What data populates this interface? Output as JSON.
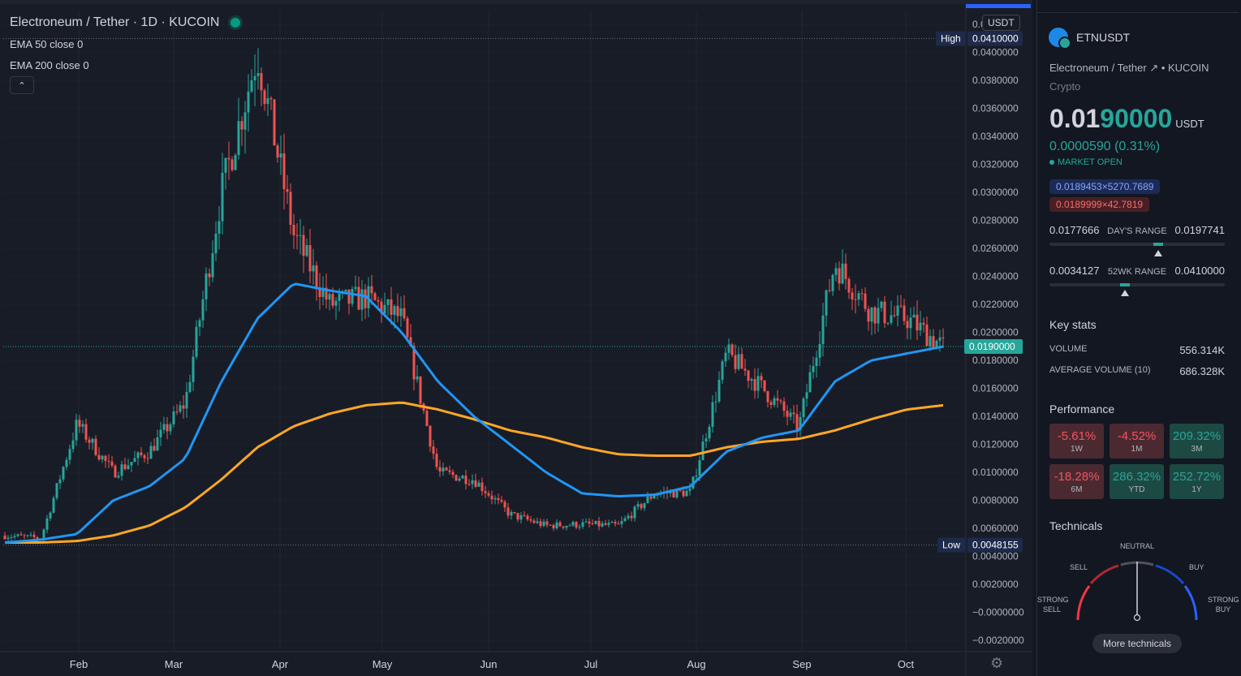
{
  "legend": {
    "symbol_title": "Electroneum / Tether · 1D · KUCOIN",
    "ema50": "EMA 50 close 0",
    "ema200": "EMA 200 close 0",
    "collapse_icon": "chevron-up-icon"
  },
  "currency_badge": "USDT",
  "high_label": "High",
  "high_value": "0.0410000",
  "low_label": "Low",
  "low_value": "0.0048155",
  "last_price_label": "0.0190000",
  "colors": {
    "up": "#26a69a",
    "down": "#ef5350",
    "ema50": "#2196f3",
    "ema200": "#ffa726",
    "background": "#181c27",
    "accent": "#2962ff"
  },
  "chart_data": {
    "type": "candlestick",
    "title": "Electroneum / Tether · 1D · KUCOIN",
    "ylim": [
      -0.0028,
      0.043
    ],
    "y_ticks": [
      "0.0420000",
      "0.0400000",
      "0.0380000",
      "0.0360000",
      "0.0340000",
      "0.0320000",
      "0.0300000",
      "0.0280000",
      "0.0260000",
      "0.0240000",
      "0.0220000",
      "0.0200000",
      "0.0180000",
      "0.0160000",
      "0.0140000",
      "0.0120000",
      "0.0100000",
      "0.0080000",
      "0.0060000",
      "0.0040000",
      "0.0020000",
      "−0.0000000",
      "−0.0020000"
    ],
    "x_ticks": [
      "Feb",
      "Mar",
      "Apr",
      "May",
      "Jun",
      "Jul",
      "Aug",
      "Sep",
      "Oct"
    ],
    "series": [
      {
        "name": "Close",
        "x": [
          "Jan",
          "early Feb",
          "mid Feb",
          "late Feb",
          "Mar",
          "mid Mar",
          "late Mar",
          "early Apr",
          "mid Apr",
          "late Apr",
          "May",
          "mid May",
          "late May",
          "Jun",
          "mid Jun",
          "late Jun",
          "Jul",
          "mid Jul",
          "late Jul",
          "Aug",
          "mid Aug",
          "late Aug",
          "Sep",
          "mid Sep",
          "late Sep",
          "Oct",
          "mid Oct"
        ],
        "values": [
          0.0055,
          0.0053,
          0.0135,
          0.01,
          0.0115,
          0.015,
          0.03,
          0.04,
          0.027,
          0.022,
          0.0225,
          0.021,
          0.01,
          0.0095,
          0.007,
          0.0062,
          0.0063,
          0.0062,
          0.0085,
          0.0086,
          0.0185,
          0.016,
          0.0132,
          0.025,
          0.0215,
          0.021,
          0.019
        ]
      },
      {
        "name": "EMA 50 close 0",
        "x": [
          "Jan",
          "early Feb",
          "mid Feb",
          "late Feb",
          "Mar",
          "mid Mar",
          "late Mar",
          "early Apr",
          "mid Apr",
          "late Apr",
          "May",
          "mid May",
          "late May",
          "Jun",
          "mid Jun",
          "late Jun",
          "Jul",
          "mid Jul",
          "late Jul",
          "Aug",
          "mid Aug",
          "late Aug",
          "Sep",
          "mid Sep",
          "late Sep",
          "Oct",
          "mid Oct"
        ],
        "values": [
          0.005,
          0.0052,
          0.0056,
          0.008,
          0.009,
          0.011,
          0.0165,
          0.021,
          0.0235,
          0.023,
          0.0226,
          0.02,
          0.0165,
          0.014,
          0.012,
          0.01,
          0.0085,
          0.0083,
          0.0084,
          0.009,
          0.0115,
          0.0125,
          0.013,
          0.0165,
          0.018,
          0.0185,
          0.019
        ]
      },
      {
        "name": "EMA 200 close 0",
        "x": [
          "Jan",
          "early Feb",
          "mid Feb",
          "late Feb",
          "Mar",
          "mid Mar",
          "late Mar",
          "early Apr",
          "mid Apr",
          "late Apr",
          "May",
          "mid May",
          "late May",
          "Jun",
          "mid Jun",
          "late Jun",
          "Jul",
          "mid Jul",
          "late Jul",
          "Aug",
          "mid Aug",
          "late Aug",
          "Sep",
          "mid Sep",
          "late Sep",
          "Oct",
          "mid Oct"
        ],
        "values": [
          0.005,
          0.005,
          0.0051,
          0.0055,
          0.0062,
          0.0075,
          0.0095,
          0.0118,
          0.0133,
          0.0142,
          0.0148,
          0.015,
          0.0145,
          0.0138,
          0.013,
          0.0125,
          0.0118,
          0.0113,
          0.0112,
          0.0112,
          0.0118,
          0.0122,
          0.0124,
          0.013,
          0.0138,
          0.0145,
          0.0148
        ]
      }
    ]
  },
  "side": {
    "symbol": "ETNUSDT",
    "full_name": "Electroneum / Tether ↗ • KUCOIN",
    "category": "Crypto",
    "price_main": "0.01",
    "price_tail": "90000",
    "currency": "USDT",
    "change": "0.0000590 (0.31%)",
    "market_status": "MARKET OPEN",
    "bid": "0.0189453×5270.7689",
    "ask": "0.0189999×42.7819",
    "day_range": {
      "low": "0.0177666",
      "label": "DAY'S RANGE",
      "high": "0.0197741",
      "position": 0.62
    },
    "week52_range": {
      "low": "0.0034127",
      "label": "52WK RANGE",
      "high": "0.0410000",
      "position": 0.43
    },
    "key_stats_title": "Key stats",
    "volume_label": "VOLUME",
    "volume_value": "556.314K",
    "avg_volume_label": "AVERAGE VOLUME (10)",
    "avg_volume_value": "686.328K",
    "performance_title": "Performance",
    "performance": [
      {
        "value": "-5.61%",
        "period": "1W"
      },
      {
        "value": "-4.52%",
        "period": "1M"
      },
      {
        "value": "209.32%",
        "period": "3M"
      },
      {
        "value": "-18.28%",
        "period": "6M"
      },
      {
        "value": "286.32%",
        "period": "YTD"
      },
      {
        "value": "252.72%",
        "period": "1Y"
      }
    ],
    "technicals_title": "Technicals",
    "gauge": {
      "neutral": "NEUTRAL",
      "sell": "SELL",
      "buy": "BUY",
      "strong_sell": "STRONG\nSELL",
      "strong_buy": "STRONG\nBUY",
      "reading": "Neutral"
    },
    "more_technicals": "More technicals"
  }
}
